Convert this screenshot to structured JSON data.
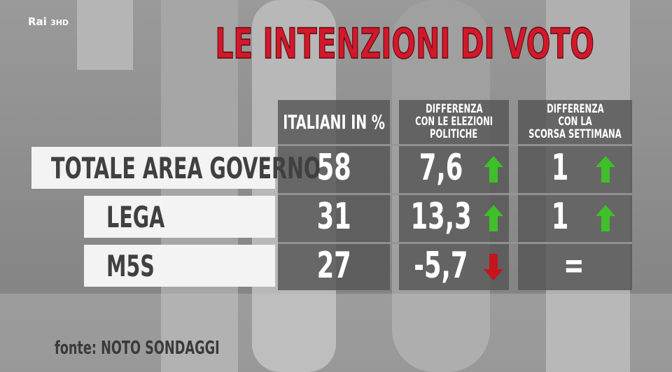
{
  "logo": {
    "brand": "Rai",
    "channel": "3HD"
  },
  "title": "LE INTENZIONI DI VOTO",
  "table": {
    "columns": [
      [
        "ITALIANI IN %"
      ],
      [
        "DIFFERENZA",
        "CON LE ELEZIONI",
        "POLITICHE"
      ],
      [
        "DIFFERENZA",
        "CON LA",
        "SCORSA SETTIMANA"
      ]
    ],
    "rows": [
      [
        "TOTALE AREA GOVERNO",
        "58",
        "7,6",
        "1"
      ],
      [
        "LEGA",
        "31",
        "13,3",
        "1"
      ],
      [
        "M5S",
        "27",
        "-5,7",
        "="
      ]
    ]
  },
  "source": "fonte: NOTO SONDAGGI"
}
